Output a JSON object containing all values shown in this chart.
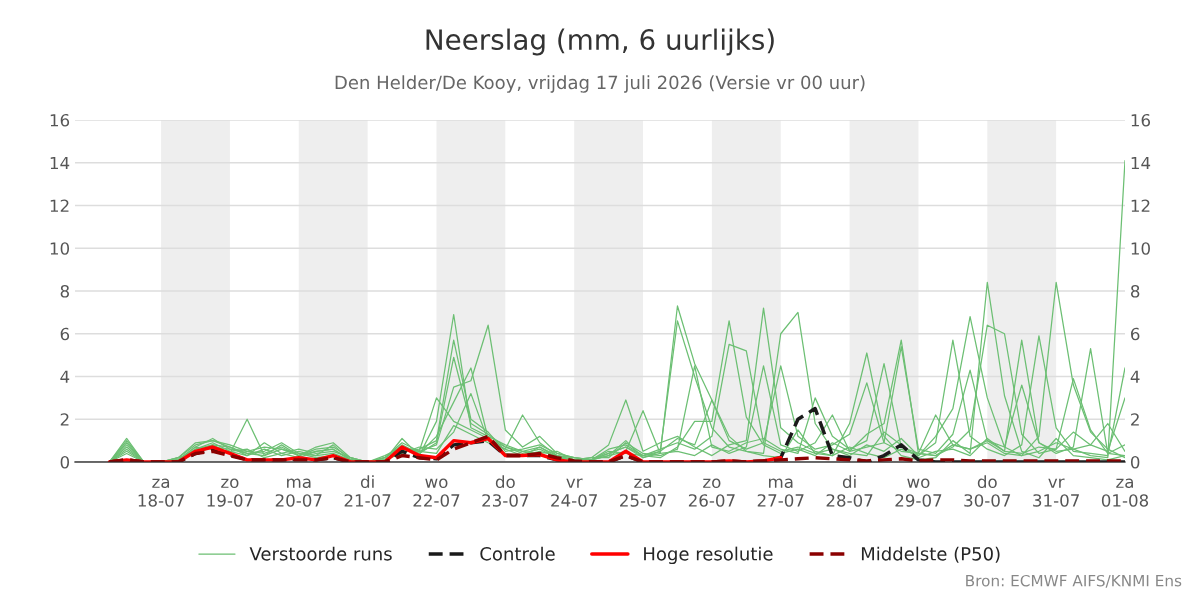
{
  "chart_data": {
    "type": "line",
    "title": "Neerslag (mm, 6 uurlijks)",
    "subtitle": "Den Helder/De Kooy, vrijdag 17 juli 2026 (Versie vr 00 uur)",
    "x": [
      "2026-07-17T06:00",
      "2026-07-17T12:00",
      "2026-07-17T18:00",
      "2026-07-18T00:00",
      "2026-07-18T06:00",
      "2026-07-18T12:00",
      "2026-07-18T18:00",
      "2026-07-19T00:00",
      "2026-07-19T06:00",
      "2026-07-19T12:00",
      "2026-07-19T18:00",
      "2026-07-20T00:00",
      "2026-07-20T06:00",
      "2026-07-20T12:00",
      "2026-07-20T18:00",
      "2026-07-21T00:00",
      "2026-07-21T06:00",
      "2026-07-21T12:00",
      "2026-07-21T18:00",
      "2026-07-22T00:00",
      "2026-07-22T06:00",
      "2026-07-22T12:00",
      "2026-07-22T18:00",
      "2026-07-23T00:00",
      "2026-07-23T06:00",
      "2026-07-23T12:00",
      "2026-07-23T18:00",
      "2026-07-24T00:00",
      "2026-07-24T06:00",
      "2026-07-24T12:00",
      "2026-07-24T18:00",
      "2026-07-25T00:00",
      "2026-07-25T06:00",
      "2026-07-25T12:00",
      "2026-07-25T18:00",
      "2026-07-26T00:00",
      "2026-07-26T06:00",
      "2026-07-26T12:00",
      "2026-07-26T18:00",
      "2026-07-27T00:00",
      "2026-07-27T06:00",
      "2026-07-27T12:00",
      "2026-07-27T18:00",
      "2026-07-28T00:00",
      "2026-07-28T06:00",
      "2026-07-28T12:00",
      "2026-07-28T18:00",
      "2026-07-29T00:00",
      "2026-07-29T06:00",
      "2026-07-29T12:00",
      "2026-07-29T18:00",
      "2026-07-30T00:00",
      "2026-07-30T06:00",
      "2026-07-30T12:00",
      "2026-07-30T18:00",
      "2026-07-31T00:00",
      "2026-07-31T06:00",
      "2026-07-31T12:00",
      "2026-07-31T18:00",
      "2026-08-01T00:00"
    ],
    "series": [
      {
        "name": "Verstoorde runs",
        "color": "#6cbf73",
        "line_style": "solid",
        "values": [
          0,
          1.1,
          0,
          0,
          0.1,
          0.7,
          1.1,
          0.6,
          0.4,
          0.3,
          0.8,
          0.3,
          0.7,
          0.9,
          0.2,
          0,
          0.1,
          1.1,
          0.3,
          1.9,
          6.9,
          1.6,
          1.2,
          0.8,
          0.5,
          0.7,
          0.2,
          0.1,
          0.1,
          0.3,
          1.0,
          0.2,
          0.4,
          7.3,
          4.6,
          2.9,
          1.2,
          0.5,
          0.3,
          0.2,
          1.5,
          0.4,
          0.3,
          1.8,
          5.1,
          1.2,
          0.3,
          0.1,
          0.2,
          1.0,
          0.4,
          8.4,
          3.1,
          0.5,
          0.2,
          1.1,
          0.3,
          0.2,
          0.1,
          0.3
        ]
      },
      {
        "color": "#6cbf73",
        "line_style": "solid",
        "values": [
          0,
          0.9,
          0,
          0,
          0.2,
          0.8,
          1.0,
          0.7,
          0.3,
          0.9,
          0.4,
          0.2,
          0.5,
          0.6,
          0.1,
          0,
          0.2,
          0.9,
          0.5,
          0.8,
          3.5,
          3.8,
          6.4,
          1.5,
          0.7,
          1.2,
          0.4,
          0.2,
          0.1,
          0.6,
          0.8,
          0.3,
          0.2,
          0.7,
          1.9,
          1.9,
          6.6,
          2.1,
          0.8,
          0.4,
          0.6,
          0.3,
          0.9,
          0.5,
          1.3,
          1.8,
          5.7,
          0.4,
          0.3,
          0.8,
          0.6,
          0.9,
          0.4,
          0.3,
          1.2,
          8.4,
          3.6,
          1.4,
          0.6,
          0.2
        ]
      },
      {
        "color": "#6cbf73",
        "line_style": "solid",
        "values": [
          0,
          0.6,
          0,
          0,
          0.1,
          0.5,
          0.8,
          0.4,
          2.0,
          0.3,
          0.6,
          0.4,
          0.2,
          0.3,
          0.1,
          0,
          0.1,
          0.6,
          0.5,
          0.4,
          1.7,
          1.3,
          0.9,
          0.6,
          0.3,
          0.5,
          0.3,
          0.1,
          0.2,
          0.8,
          2.9,
          0.5,
          0.9,
          1.2,
          0.7,
          0.3,
          0.8,
          1.0,
          7.2,
          1.6,
          0.9,
          0.5,
          0.3,
          0.7,
          0.4,
          0.2,
          0.6,
          0.3,
          1.2,
          2.5,
          6.8,
          3.0,
          0.7,
          0.3,
          0.5,
          0.9,
          0.6,
          0.3,
          0.2,
          14.1
        ]
      },
      {
        "color": "#6cbf73",
        "line_style": "solid",
        "values": [
          0,
          0.7,
          0,
          0,
          0.1,
          0.6,
          0.9,
          0.5,
          0.3,
          0.6,
          0.3,
          0.5,
          0.3,
          0.4,
          0.1,
          0,
          0.3,
          0.7,
          0.4,
          1.2,
          2.8,
          4.4,
          1.1,
          0.7,
          0.4,
          0.6,
          0.2,
          0.1,
          0.1,
          0.4,
          0.7,
          0.2,
          0.5,
          6.6,
          4.0,
          1.6,
          0.7,
          0.5,
          0.4,
          6.0,
          7.0,
          1.8,
          0.6,
          0.4,
          0.3,
          1.4,
          0.8,
          0.2,
          0.5,
          0.6,
          0.3,
          1.1,
          0.5,
          5.7,
          0.9,
          0.4,
          0.7,
          5.3,
          0.4,
          0.3
        ]
      },
      {
        "color": "#6cbf73",
        "line_style": "solid",
        "values": [
          0,
          0.5,
          0,
          0,
          0.2,
          0.4,
          0.7,
          0.6,
          0.5,
          0.4,
          0.7,
          0.3,
          0.6,
          0.7,
          0.2,
          0,
          0.1,
          0.5,
          0.6,
          1.0,
          5.7,
          2.0,
          1.4,
          0.5,
          0.6,
          0.8,
          0.4,
          0.2,
          0.1,
          0.5,
          0.4,
          0.3,
          0.6,
          0.9,
          0.6,
          1.2,
          5.5,
          5.2,
          0.9,
          0.5,
          0.7,
          0.4,
          0.6,
          0.3,
          0.8,
          0.5,
          1.1,
          0.3,
          0.9,
          5.7,
          1.2,
          0.6,
          0.3,
          0.8,
          5.9,
          1.6,
          0.5,
          0.4,
          0.3,
          4.4
        ]
      },
      {
        "color": "#6cbf73",
        "line_style": "solid",
        "values": [
          0,
          0.8,
          0,
          0,
          0.1,
          0.6,
          0.8,
          0.7,
          0.4,
          0.5,
          0.9,
          0.4,
          0.3,
          0.8,
          0.1,
          0,
          0.2,
          0.8,
          0.4,
          0.9,
          4.9,
          1.8,
          1.3,
          0.7,
          0.5,
          0.4,
          0.5,
          0.1,
          0.2,
          0.2,
          0.9,
          0.4,
          0.3,
          0.6,
          4.5,
          0.7,
          0.5,
          0.9,
          1.1,
          0.6,
          0.4,
          3.0,
          1.2,
          0.6,
          1.0,
          4.6,
          0.7,
          0.4,
          0.3,
          0.7,
          1.5,
          6.4,
          6.0,
          1.3,
          0.4,
          0.6,
          1.4,
          0.8,
          1.8,
          0.5
        ]
      },
      {
        "color": "#6cbf73",
        "line_style": "solid",
        "values": [
          0,
          0.4,
          0,
          0,
          0.1,
          0.7,
          0.6,
          0.5,
          0.6,
          0.2,
          0.4,
          0.6,
          0.4,
          0.5,
          0.2,
          0,
          0.1,
          0.4,
          0.7,
          0.6,
          1.4,
          3.2,
          1.0,
          0.4,
          0.3,
          0.7,
          0.3,
          0.1,
          0.1,
          0.3,
          0.5,
          2.4,
          0.4,
          0.5,
          0.3,
          0.8,
          0.4,
          0.7,
          4.5,
          0.8,
          0.5,
          0.9,
          2.2,
          0.5,
          0.7,
          0.9,
          5.4,
          0.6,
          0.4,
          1.3,
          4.3,
          1.0,
          0.5,
          0.4,
          0.7,
          0.6,
          3.9,
          1.5,
          0.4,
          0.8
        ]
      },
      {
        "color": "#6cbf73",
        "line_style": "solid",
        "values": [
          0,
          1.0,
          0,
          0,
          0.2,
          0.9,
          1.0,
          0.8,
          0.5,
          0.7,
          0.6,
          0.3,
          0.5,
          0.6,
          0.1,
          0,
          0.2,
          0.7,
          0.5,
          3.0,
          1.9,
          1.5,
          1.1,
          0.6,
          2.2,
          0.9,
          0.3,
          0.2,
          0.1,
          0.4,
          0.7,
          0.3,
          0.5,
          1.1,
          0.8,
          2.9,
          1.0,
          0.6,
          0.9,
          4.5,
          1.2,
          0.6,
          0.8,
          1.3,
          3.7,
          0.9,
          0.5,
          0.4,
          2.2,
          0.8,
          0.6,
          1.0,
          0.7,
          3.6,
          0.9,
          0.5,
          0.6,
          0.8,
          0.5,
          3.0
        ]
      },
      {
        "name": "Controle",
        "color": "#1a1a1a",
        "line_style": "dashed",
        "values": [
          0,
          0.1,
          0,
          0,
          0,
          0.4,
          0.6,
          0.35,
          0.1,
          0.1,
          0.1,
          0.15,
          0.1,
          0.2,
          0,
          0,
          0,
          0.5,
          0.2,
          0.15,
          0.8,
          0.9,
          1.0,
          0.3,
          0.3,
          0.3,
          0.1,
          0,
          0,
          0,
          0.3,
          0,
          0,
          0,
          0,
          0,
          0.05,
          0,
          0.05,
          0.2,
          2.0,
          2.5,
          0.3,
          0.2,
          0,
          0.3,
          0.8,
          0.1,
          0,
          0,
          0,
          0,
          0,
          0,
          0,
          0,
          0,
          0,
          0,
          0
        ]
      },
      {
        "name": "Hoge resolutie",
        "color": "#ff0000",
        "line_style": "solid",
        "values": [
          0,
          0.1,
          0,
          0,
          0,
          0.5,
          0.7,
          0.4,
          0.1,
          0.1,
          0.1,
          0.2,
          0.1,
          0.3,
          0,
          0,
          0,
          0.7,
          0.3,
          0.2,
          1.0,
          0.9,
          1.1,
          0.3,
          0.3,
          0.35,
          0.1,
          0,
          0,
          0,
          0.5,
          0,
          0,
          0,
          0,
          0,
          0.05,
          0,
          0.05,
          0.2,
          null,
          null,
          null,
          null,
          null,
          null,
          null,
          null,
          null,
          null,
          null,
          null,
          null,
          null,
          null,
          null,
          null,
          null,
          null,
          null
        ]
      },
      {
        "name": "Middelste (P50)",
        "color": "#8b0000",
        "line_style": "dashed",
        "values": [
          0,
          0.1,
          0,
          0,
          0,
          0.4,
          0.5,
          0.3,
          0.1,
          0.1,
          0.1,
          0.1,
          0.1,
          0.2,
          0,
          0,
          0,
          0.3,
          0.2,
          0.1,
          0.6,
          0.9,
          1.2,
          0.3,
          0.3,
          0.4,
          0.2,
          0.05,
          0,
          0,
          0.3,
          0,
          0,
          0,
          0,
          0,
          0.05,
          0,
          0.05,
          0.1,
          0.15,
          0.2,
          0.15,
          0.1,
          0.05,
          0.1,
          0.15,
          0.05,
          0.1,
          0.1,
          0.05,
          0.05,
          0.05,
          0.05,
          0.05,
          0.05,
          0.05,
          0.05,
          0.05,
          0.05
        ]
      }
    ],
    "xlim": [
      "2026-07-16T18:00",
      "2026-08-01T00:00"
    ],
    "xticks": [
      {
        "value": "2026-07-18",
        "label": "za\n18-07"
      },
      {
        "value": "2026-07-19",
        "label": "zo\n19-07"
      },
      {
        "value": "2026-07-20",
        "label": "ma\n20-07"
      },
      {
        "value": "2026-07-21",
        "label": "di\n21-07"
      },
      {
        "value": "2026-07-22",
        "label": "wo\n22-07"
      },
      {
        "value": "2026-07-23",
        "label": "do\n23-07"
      },
      {
        "value": "2026-07-24",
        "label": "vr\n24-07"
      },
      {
        "value": "2026-07-25",
        "label": "za\n25-07"
      },
      {
        "value": "2026-07-26",
        "label": "zo\n26-07"
      },
      {
        "value": "2026-07-27",
        "label": "ma\n27-07"
      },
      {
        "value": "2026-07-28",
        "label": "di\n28-07"
      },
      {
        "value": "2026-07-29",
        "label": "wo\n29-07"
      },
      {
        "value": "2026-07-30",
        "label": "do\n30-07"
      },
      {
        "value": "2026-07-31",
        "label": "vr\n31-07"
      },
      {
        "value": "2026-08-01",
        "label": "za\n01-08"
      }
    ],
    "ylim": [
      0,
      16
    ],
    "yticks": [
      0,
      2,
      4,
      6,
      8,
      10,
      12,
      14,
      16
    ],
    "y2lim": [
      0,
      16
    ],
    "y2ticks": [
      0,
      2,
      4,
      6,
      8,
      10,
      12,
      14,
      16
    ],
    "bands": [
      {
        "axis": "x",
        "from": "2026-07-18",
        "to": "2026-07-19",
        "color": "#eeeeee"
      },
      {
        "axis": "x",
        "from": "2026-07-20",
        "to": "2026-07-21",
        "color": "#eeeeee"
      },
      {
        "axis": "x",
        "from": "2026-07-22",
        "to": "2026-07-23",
        "color": "#eeeeee"
      },
      {
        "axis": "x",
        "from": "2026-07-24",
        "to": "2026-07-25",
        "color": "#eeeeee"
      },
      {
        "axis": "x",
        "from": "2026-07-26",
        "to": "2026-07-27",
        "color": "#eeeeee"
      },
      {
        "axis": "x",
        "from": "2026-07-28",
        "to": "2026-07-29",
        "color": "#eeeeee"
      },
      {
        "axis": "x",
        "from": "2026-07-30",
        "to": "2026-07-31",
        "color": "#eeeeee"
      }
    ],
    "grid": "y",
    "legend": "bottom",
    "annotations": [
      "Bron: ECMWF AIFS/KNMI Ens"
    ]
  }
}
